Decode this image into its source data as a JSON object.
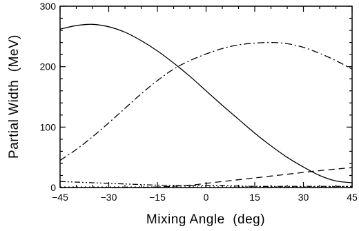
{
  "chart_data": {
    "type": "line",
    "title": "",
    "xlabel": "Mixing Angle  (deg)",
    "ylabel": "Partial Width  (MeV)",
    "xlim": [
      -45,
      45
    ],
    "ylim": [
      0,
      300
    ],
    "x_ticks": [
      "-45",
      "-30",
      "-15",
      "0",
      "15",
      "30",
      "45"
    ],
    "y_ticks": [
      "0",
      "100",
      "200",
      "300"
    ],
    "grid": false,
    "legend": "none",
    "series": [
      {
        "style": "solid",
        "x": [
          -45,
          -40,
          -35,
          -30,
          -25,
          -20,
          -15,
          -10,
          -5,
          0,
          5,
          10,
          15,
          20,
          25,
          30,
          35,
          40,
          45
        ],
        "y": [
          262,
          268,
          270,
          266,
          257,
          243,
          226,
          206,
          184,
          160,
          136,
          113,
          90,
          69,
          50,
          34,
          20,
          11,
          8
        ]
      },
      {
        "style": "dash-dot",
        "x": [
          -45,
          -40,
          -35,
          -30,
          -25,
          -20,
          -15,
          -10,
          -5,
          0,
          5,
          10,
          15,
          20,
          25,
          30,
          35,
          40,
          45
        ],
        "y": [
          45,
          63,
          84,
          107,
          131,
          155,
          177,
          196,
          210,
          221,
          230,
          236,
          239,
          240,
          238,
          232,
          222,
          210,
          196
        ]
      },
      {
        "style": "dashed",
        "x": [
          -45,
          -35,
          -25,
          -15,
          -5,
          0,
          5,
          15,
          25,
          35,
          45
        ],
        "y": [
          0,
          0,
          0,
          1,
          4,
          7,
          10,
          16,
          22,
          28,
          33
        ]
      },
      {
        "style": "dash-dot-dot",
        "x": [
          -45,
          -35,
          -25,
          -15,
          -5,
          5,
          15,
          25,
          35,
          45
        ],
        "y": [
          10,
          8,
          6,
          4,
          3,
          3,
          2,
          2,
          2,
          2
        ]
      },
      {
        "style": "dotted",
        "x": [
          -45,
          -30,
          -15,
          0,
          15,
          30,
          45
        ],
        "y": [
          1,
          1,
          1,
          1,
          1,
          1,
          2
        ]
      }
    ]
  }
}
